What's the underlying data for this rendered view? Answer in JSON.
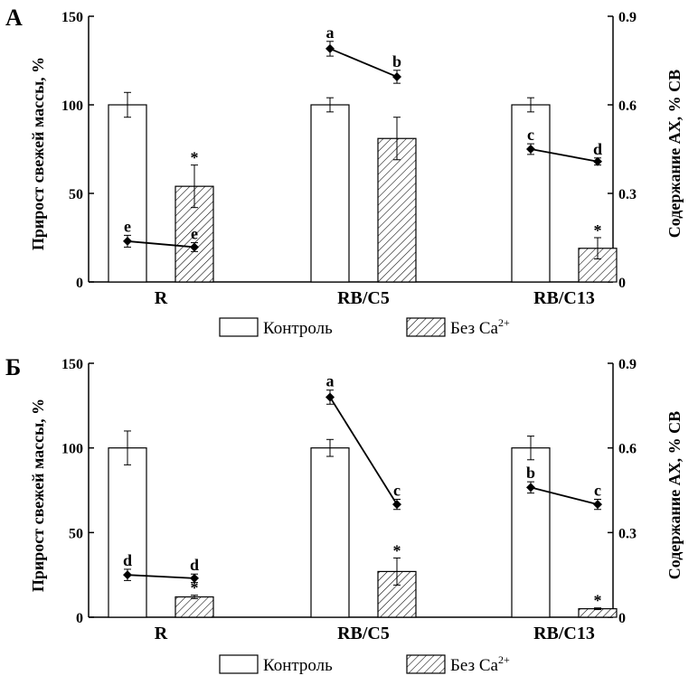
{
  "chart_data": [
    {
      "panel": "А",
      "type": "bar",
      "categories": [
        "R",
        "RB/C5",
        "RB/C13"
      ],
      "ylabel": "Прирост свежей массы, %",
      "y2label": "Содержание АХ, % СВ",
      "ylim": [
        0,
        150
      ],
      "yticks": [
        "0",
        "50",
        "100",
        "150"
      ],
      "y2lim": [
        0,
        0.9
      ],
      "y2ticks": [
        "0",
        "0.3",
        "0.6",
        "0.9"
      ],
      "series": [
        {
          "name": "Контроль",
          "values": [
            100,
            100,
            100
          ],
          "errors": [
            7,
            4,
            4
          ],
          "marks": [
            "",
            "",
            ""
          ]
        },
        {
          "name": "Без Ca",
          "values": [
            54,
            81,
            19
          ],
          "errors": [
            12,
            12,
            6
          ],
          "marks": [
            "*",
            "",
            "*"
          ]
        }
      ],
      "line_series": {
        "name": "Содержание АХ",
        "values_ctrl": [
          0.138,
          0.79,
          0.45
        ],
        "values_noca": [
          0.118,
          0.695,
          0.408
        ],
        "errors_ctrl": [
          0.02,
          0.025,
          0.018
        ],
        "errors_noca": [
          0.015,
          0.022,
          0.012
        ],
        "labels_ctrl": [
          "e",
          "a",
          "c"
        ],
        "labels_noca": [
          "e",
          "b",
          "d"
        ]
      }
    },
    {
      "panel": "Б",
      "type": "bar",
      "categories": [
        "R",
        "RB/C5",
        "RB/C13"
      ],
      "ylabel": "Прирост свежей массы, %",
      "y2label": "Содержание АХ, % СВ",
      "ylim": [
        0,
        150
      ],
      "yticks": [
        "0",
        "50",
        "100",
        "150"
      ],
      "y2lim": [
        0,
        0.9
      ],
      "y2ticks": [
        "0",
        "0.3",
        "0.6",
        "0.9"
      ],
      "series": [
        {
          "name": "Контроль",
          "values": [
            100,
            100,
            100
          ],
          "errors": [
            10,
            5,
            7
          ],
          "marks": [
            "",
            "",
            ""
          ]
        },
        {
          "name": "Без Ca",
          "values": [
            12,
            27,
            5
          ],
          "errors": [
            1,
            8,
            0.5
          ],
          "marks": [
            "*",
            "*",
            "*"
          ]
        }
      ],
      "line_series": {
        "name": "Содержание АХ",
        "values_ctrl": [
          0.15,
          0.78,
          0.46
        ],
        "values_noca": [
          0.138,
          0.4,
          0.4
        ],
        "errors_ctrl": [
          0.02,
          0.025,
          0.02
        ],
        "errors_noca": [
          0.015,
          0.018,
          0.018
        ],
        "labels_ctrl": [
          "d",
          "a",
          "b"
        ],
        "labels_noca": [
          "d",
          "c",
          "c"
        ]
      }
    }
  ],
  "legend": {
    "control_label": "Контроль",
    "noca_label_base": "Без Ca",
    "noca_label_sup": "2+"
  }
}
